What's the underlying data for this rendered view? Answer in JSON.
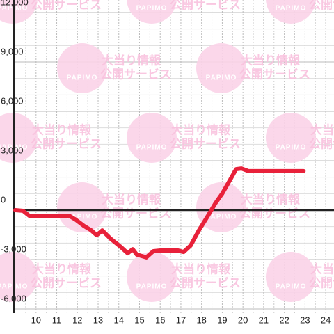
{
  "chart_data": {
    "type": "line",
    "watermark": {
      "logo": "PAPIMO",
      "line1": "大当り情報",
      "line2": "公開サービス"
    },
    "x": [
      9.0,
      9.37,
      9.67,
      11.6,
      11.93,
      12.33,
      12.67,
      12.93,
      13.2,
      13.6,
      14.1,
      14.43,
      14.67,
      14.87,
      15.33,
      15.67,
      16.0,
      16.87,
      17.13,
      17.47,
      17.87,
      18.27,
      18.67,
      19.0,
      19.33,
      19.67,
      19.93,
      20.27,
      22.93
    ],
    "series": [
      {
        "color": "#e8213a",
        "values": [
          0,
          -40,
          -340,
          -340,
          -590,
          -970,
          -1230,
          -1520,
          -1230,
          -1730,
          -2240,
          -2620,
          -2370,
          -2700,
          -2870,
          -2490,
          -2450,
          -2450,
          -2540,
          -2150,
          -1230,
          -420,
          420,
          1010,
          1730,
          2490,
          2530,
          2370,
          2370
        ]
      }
    ],
    "xlim": [
      8.93,
      24.4
    ],
    "xticks": [
      10,
      11,
      12,
      13,
      14,
      15,
      16,
      17,
      18,
      19,
      20,
      21,
      22,
      23,
      24
    ],
    "ylim": [
      -6000,
      12000
    ],
    "yticks": [
      {
        "value": -6000,
        "label": "-6,000"
      },
      {
        "value": -3000,
        "label": "-3,000"
      },
      0,
      {
        "value": 3000,
        "label": "3,000"
      },
      {
        "value": 6000,
        "label": "6,000"
      },
      {
        "value": 9000,
        "label": "9,000"
      },
      {
        "value": 12000,
        "label": "12,000"
      }
    ],
    "grid": true
  }
}
